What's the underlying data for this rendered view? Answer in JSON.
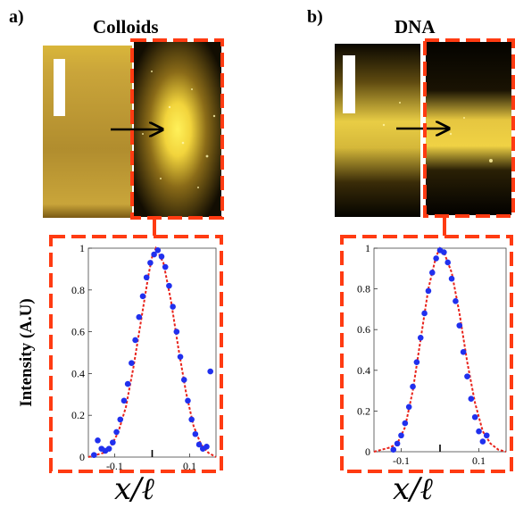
{
  "figure": {
    "panel_a": {
      "letter": "a)",
      "title": "Colloids"
    },
    "panel_b": {
      "letter": "b)",
      "title": "DNA"
    },
    "shared_ylabel": "Intensity (A.U)",
    "shared_xlabel": "x/ℓ"
  },
  "colors": {
    "dash_frame": "#ff3b12",
    "fit_line": "#e8231b",
    "data_points": "#2030ee",
    "image_glow": "#f4d43a"
  },
  "chart_data": [
    {
      "type": "scatter",
      "panel": "a",
      "ylim": [
        0,
        1
      ],
      "xlim": [
        -0.17,
        0.17
      ],
      "x_ticks": [
        "-0.1",
        "0.1"
      ],
      "y_ticks": [
        "0",
        "0.2",
        "0.4",
        "0.6",
        "0.8",
        "1"
      ],
      "series": [
        {
          "kind": "points",
          "x": [
            -0.155,
            -0.145,
            -0.135,
            -0.125,
            -0.115,
            -0.105,
            -0.095,
            -0.085,
            -0.075,
            -0.065,
            -0.055,
            -0.045,
            -0.035,
            -0.025,
            -0.015,
            -0.005,
            0.005,
            0.015,
            0.025,
            0.035,
            0.045,
            0.055,
            0.065,
            0.075,
            0.085,
            0.095,
            0.105,
            0.115,
            0.125,
            0.135,
            0.145,
            0.155
          ],
          "y": [
            0.01,
            0.08,
            0.04,
            0.03,
            0.04,
            0.07,
            0.12,
            0.18,
            0.27,
            0.35,
            0.45,
            0.56,
            0.67,
            0.77,
            0.86,
            0.93,
            0.97,
            0.99,
            0.96,
            0.91,
            0.82,
            0.72,
            0.6,
            0.48,
            0.37,
            0.27,
            0.18,
            0.11,
            0.06,
            0.04,
            0.05,
            0.41
          ]
        },
        {
          "kind": "fit",
          "x": [
            -0.17,
            -0.15,
            -0.13,
            -0.11,
            -0.09,
            -0.07,
            -0.05,
            -0.03,
            -0.01,
            0.0,
            0.01,
            0.03,
            0.05,
            0.07,
            0.09,
            0.11,
            0.13,
            0.15,
            0.17
          ],
          "y": [
            0.0,
            0.01,
            0.02,
            0.05,
            0.12,
            0.24,
            0.43,
            0.65,
            0.87,
            0.96,
            1.0,
            0.93,
            0.75,
            0.52,
            0.31,
            0.15,
            0.06,
            0.02,
            0.0
          ]
        }
      ]
    },
    {
      "type": "scatter",
      "panel": "b",
      "ylim": [
        0,
        1
      ],
      "xlim": [
        -0.17,
        0.17
      ],
      "x_ticks": [
        "-0.1",
        "0.1"
      ],
      "y_ticks": [
        "0",
        "0.2",
        "0.4",
        "0.6",
        "0.8",
        "1"
      ],
      "series": [
        {
          "kind": "points",
          "x": [
            -0.12,
            -0.11,
            -0.1,
            -0.09,
            -0.08,
            -0.07,
            -0.06,
            -0.05,
            -0.04,
            -0.03,
            -0.02,
            -0.01,
            0.0,
            0.01,
            0.02,
            0.03,
            0.04,
            0.05,
            0.06,
            0.07,
            0.08,
            0.09,
            0.1,
            0.11,
            0.12
          ],
          "y": [
            0.01,
            0.04,
            0.08,
            0.14,
            0.22,
            0.32,
            0.44,
            0.56,
            0.68,
            0.79,
            0.88,
            0.95,
            0.99,
            0.98,
            0.93,
            0.85,
            0.74,
            0.62,
            0.49,
            0.37,
            0.26,
            0.17,
            0.1,
            0.05,
            0.08
          ]
        },
        {
          "kind": "fit",
          "x": [
            -0.17,
            -0.15,
            -0.13,
            -0.11,
            -0.09,
            -0.07,
            -0.05,
            -0.03,
            -0.01,
            0.0,
            0.01,
            0.03,
            0.05,
            0.07,
            0.09,
            0.11,
            0.13,
            0.15,
            0.17
          ],
          "y": [
            0.0,
            0.01,
            0.02,
            0.04,
            0.12,
            0.3,
            0.55,
            0.8,
            0.96,
            1.0,
            0.98,
            0.88,
            0.68,
            0.44,
            0.24,
            0.1,
            0.04,
            0.01,
            0.0
          ]
        }
      ]
    }
  ]
}
